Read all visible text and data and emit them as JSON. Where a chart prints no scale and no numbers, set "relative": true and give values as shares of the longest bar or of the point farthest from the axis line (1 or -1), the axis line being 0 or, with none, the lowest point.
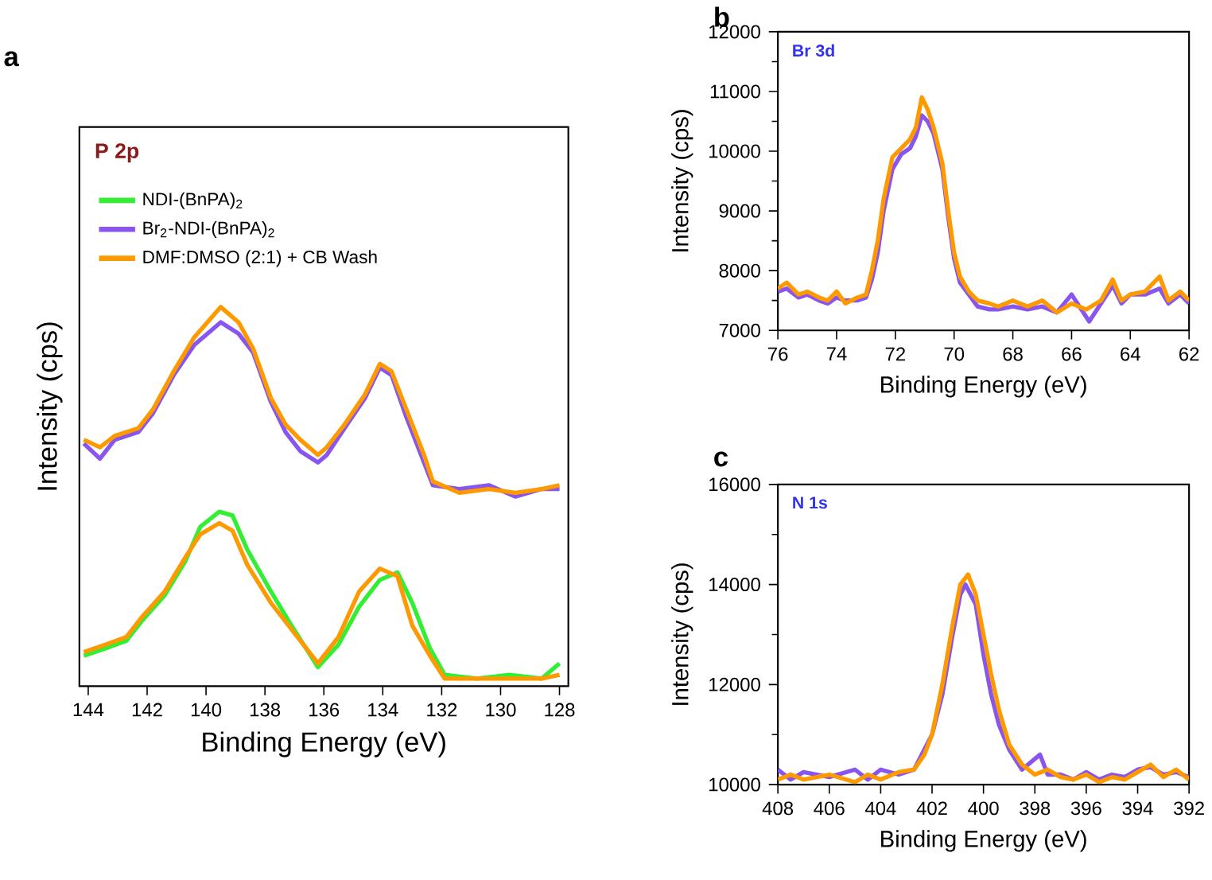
{
  "chart_data": [
    {
      "type": "line",
      "title": "P 2p",
      "xlabel": "Binding Energy (eV)",
      "ylabel": "Intensity (cps)",
      "annotations": [
        "a"
      ],
      "relative": true,
      "xlim": [
        144.3,
        127.7
      ],
      "xticks": [
        144,
        142,
        140,
        138,
        136,
        134,
        132,
        130,
        128
      ],
      "tick_labels": "x",
      "legend": "top left",
      "marker": "none",
      "line_style": "solid",
      "grid": false,
      "series": [
        {
          "name": "NDI-(BnPA)$_{2}$",
          "color": "#33ee33",
          "x": [
            144.15,
            143.4,
            142.7,
            142.2,
            141.4,
            140.7,
            140.2,
            139.55,
            139.1,
            138.6,
            137.8,
            137.1,
            136.2,
            135.5,
            134.8,
            134.1,
            133.5,
            133.0,
            132.4,
            131.9,
            130.8,
            129.7,
            128.6,
            128.0
          ],
          "values": [
            0.08,
            0.1,
            0.12,
            0.17,
            0.24,
            0.33,
            0.42,
            0.46,
            0.45,
            0.36,
            0.25,
            0.16,
            0.05,
            0.11,
            0.21,
            0.28,
            0.3,
            0.22,
            0.1,
            0.03,
            0.02,
            0.03,
            0.02,
            0.06
          ]
        },
        {
          "name": "Br$_{2}$-NDI-(BnPA)$_{2}$",
          "color": "#8855ee",
          "x": [
            144.15,
            143.6,
            143.1,
            142.3,
            141.8,
            141.1,
            140.4,
            139.5,
            138.9,
            138.4,
            137.8,
            137.3,
            136.8,
            136.2,
            135.9,
            135.3,
            134.6,
            134.1,
            133.7,
            133.2,
            132.6,
            132.3,
            131.4,
            130.4,
            129.5,
            128.6,
            128.0
          ],
          "values": [
            0.64,
            0.6,
            0.65,
            0.67,
            0.72,
            0.82,
            0.9,
            0.96,
            0.93,
            0.88,
            0.75,
            0.67,
            0.62,
            0.59,
            0.61,
            0.68,
            0.76,
            0.84,
            0.82,
            0.71,
            0.59,
            0.53,
            0.52,
            0.53,
            0.5,
            0.52,
            0.52
          ]
        },
        {
          "name": "DMF:DMSO (2:1) + CB Wash",
          "color": "#ff9900",
          "x": [
            144.15,
            143.6,
            143.1,
            142.3,
            141.8,
            141.1,
            140.4,
            139.5,
            138.9,
            138.4,
            137.8,
            137.3,
            136.8,
            136.2,
            135.9,
            135.3,
            134.6,
            134.1,
            133.7,
            133.2,
            132.6,
            132.3,
            131.4,
            130.4,
            129.5,
            128.6,
            128.0
          ],
          "values": [
            0.65,
            0.63,
            0.66,
            0.68,
            0.73,
            0.83,
            0.92,
            1.0,
            0.96,
            0.89,
            0.76,
            0.69,
            0.65,
            0.61,
            0.63,
            0.69,
            0.77,
            0.85,
            0.83,
            0.73,
            0.61,
            0.54,
            0.51,
            0.52,
            0.51,
            0.52,
            0.53
          ]
        },
        {
          "color": "#ff9900",
          "x": [
            144.15,
            143.4,
            142.7,
            142.2,
            141.4,
            140.7,
            140.2,
            139.55,
            139.1,
            138.6,
            137.8,
            137.1,
            136.2,
            135.5,
            134.8,
            134.1,
            133.5,
            133.0,
            132.4,
            131.9,
            130.8,
            129.7,
            128.6,
            128.0
          ],
          "values": [
            0.09,
            0.11,
            0.13,
            0.18,
            0.25,
            0.34,
            0.4,
            0.43,
            0.41,
            0.32,
            0.22,
            0.15,
            0.06,
            0.13,
            0.25,
            0.31,
            0.29,
            0.16,
            0.08,
            0.02,
            0.02,
            0.02,
            0.02,
            0.03
          ]
        }
      ]
    },
    {
      "type": "line",
      "title": "Br 3d",
      "xlabel": "Binding Energy (eV)",
      "ylabel": "Intensity (cps)",
      "annotations": [
        "b"
      ],
      "xlim": [
        76,
        62
      ],
      "xticks": [
        76,
        74,
        72,
        70,
        68,
        66,
        64,
        62
      ],
      "ylim": [
        7000,
        12000
      ],
      "yticks": [
        7000,
        8000,
        9000,
        10000,
        11000,
        12000
      ],
      "marker": "none",
      "line_style": "solid",
      "grid": false,
      "series": [
        {
          "color": "#8855ee",
          "x": [
            76,
            75.7,
            75.3,
            75,
            74.6,
            74.3,
            74,
            73.7,
            73.3,
            73,
            72.8,
            72.6,
            72.4,
            72.1,
            71.8,
            71.5,
            71.3,
            71.1,
            70.9,
            70.7,
            70.4,
            70.2,
            70,
            69.8,
            69.5,
            69.2,
            68.8,
            68.5,
            68,
            67.5,
            67,
            66.5,
            66,
            65.4,
            65,
            64.6,
            64.3,
            64,
            63.5,
            63,
            62.7,
            62.3,
            62
          ],
          "values": [
            7650,
            7700,
            7550,
            7600,
            7500,
            7450,
            7550,
            7500,
            7500,
            7550,
            7850,
            8300,
            9000,
            9700,
            9950,
            10050,
            10250,
            10600,
            10500,
            10300,
            9700,
            8900,
            8200,
            7800,
            7600,
            7400,
            7350,
            7350,
            7400,
            7350,
            7400,
            7300,
            7600,
            7150,
            7450,
            7750,
            7450,
            7600,
            7600,
            7700,
            7450,
            7600,
            7450
          ]
        },
        {
          "color": "#ff9900",
          "x": [
            76,
            75.7,
            75.3,
            75,
            74.6,
            74.3,
            74,
            73.7,
            73.3,
            73,
            72.8,
            72.6,
            72.4,
            72.1,
            71.8,
            71.5,
            71.3,
            71.1,
            70.9,
            70.7,
            70.4,
            70.2,
            70,
            69.8,
            69.5,
            69.2,
            68.8,
            68.5,
            68,
            67.5,
            67,
            66.5,
            66,
            65.5,
            65,
            64.6,
            64.3,
            64,
            63.5,
            63,
            62.7,
            62.3,
            62
          ],
          "values": [
            7700,
            7800,
            7600,
            7650,
            7550,
            7500,
            7650,
            7450,
            7550,
            7600,
            8000,
            8500,
            9200,
            9900,
            10050,
            10200,
            10400,
            10900,
            10700,
            10400,
            9800,
            9000,
            8300,
            7900,
            7650,
            7500,
            7450,
            7400,
            7500,
            7400,
            7500,
            7300,
            7450,
            7350,
            7500,
            7850,
            7500,
            7600,
            7650,
            7900,
            7500,
            7650,
            7500
          ]
        }
      ]
    },
    {
      "type": "line",
      "title": "N 1s",
      "xlabel": "Binding Energy (eV)",
      "ylabel": "Intensity (cps)",
      "annotations": [
        "c"
      ],
      "xlim": [
        408,
        392
      ],
      "xticks": [
        408,
        406,
        404,
        402,
        400,
        398,
        396,
        394,
        392
      ],
      "ylim": [
        10000,
        16000
      ],
      "yticks": [
        10000,
        12000,
        14000,
        16000
      ],
      "marker": "none",
      "line_style": "solid",
      "grid": false,
      "series": [
        {
          "color": "#8855ee",
          "x": [
            408,
            407.5,
            407,
            406,
            405,
            404.5,
            404,
            403.3,
            402.7,
            402.3,
            402,
            401.6,
            401.2,
            400.9,
            400.7,
            400.3,
            400,
            399.7,
            399.4,
            399,
            398.5,
            397.8,
            397.5,
            397,
            396.5,
            396,
            395.5,
            395,
            394.5,
            394,
            393.5,
            393,
            392.5,
            392
          ],
          "values": [
            10300,
            10100,
            10250,
            10150,
            10300,
            10100,
            10300,
            10200,
            10300,
            10700,
            11000,
            11800,
            13000,
            13800,
            14000,
            13600,
            12600,
            11800,
            11200,
            10700,
            10300,
            10600,
            10200,
            10200,
            10100,
            10250,
            10100,
            10200,
            10150,
            10300,
            10350,
            10200,
            10250,
            10150
          ]
        },
        {
          "color": "#ff9900",
          "x": [
            408,
            407.5,
            407,
            406,
            405,
            404.5,
            404,
            403.3,
            402.7,
            402.3,
            402,
            401.6,
            401.2,
            400.9,
            400.6,
            400.3,
            400,
            399.7,
            399.4,
            399,
            398.5,
            398,
            397.5,
            397,
            396.5,
            396,
            395.5,
            395,
            394.5,
            394,
            393.5,
            393,
            392.5,
            392
          ],
          "values": [
            10100,
            10200,
            10100,
            10200,
            10050,
            10200,
            10100,
            10250,
            10300,
            10600,
            11000,
            12000,
            13200,
            14000,
            14200,
            13800,
            13000,
            12200,
            11500,
            10800,
            10400,
            10200,
            10300,
            10150,
            10100,
            10200,
            10050,
            10150,
            10100,
            10250,
            10400,
            10150,
            10300,
            10100
          ]
        }
      ]
    }
  ]
}
